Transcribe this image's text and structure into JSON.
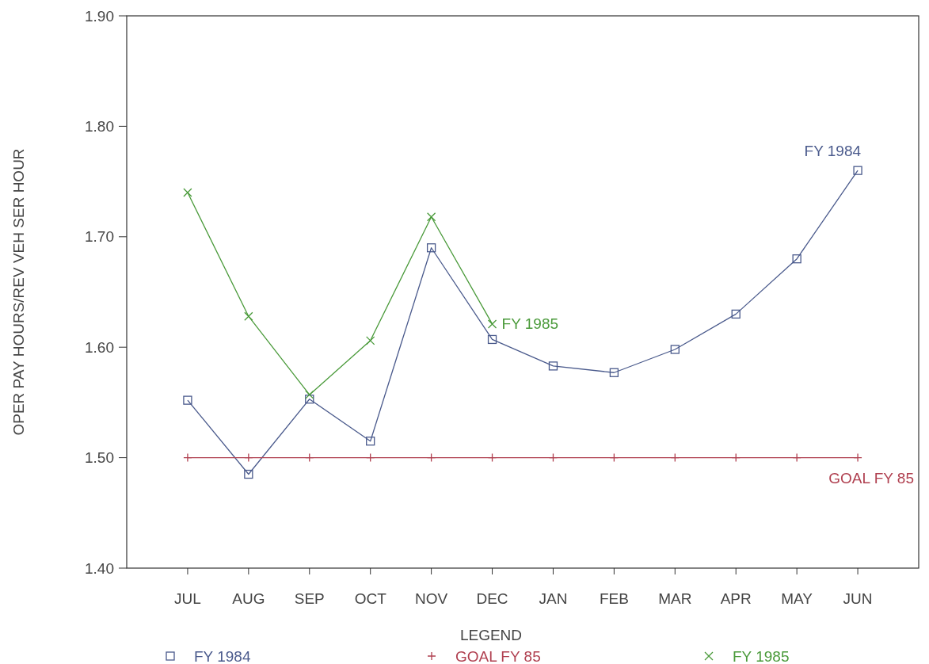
{
  "chart_data": {
    "type": "line",
    "ylabel": "OPER PAY HOURS/REV VEH SER HOUR",
    "categories": [
      "JUL",
      "AUG",
      "SEP",
      "OCT",
      "NOV",
      "DEC",
      "JAN",
      "FEB",
      "MAR",
      "APR",
      "MAY",
      "JUN"
    ],
    "series": [
      {
        "name": "FY 1984",
        "color": "#4a5a8c",
        "marker": "square",
        "values": [
          1.552,
          1.485,
          1.553,
          1.515,
          1.69,
          1.607,
          1.583,
          1.577,
          1.598,
          1.63,
          1.68,
          1.76
        ]
      },
      {
        "name": "GOAL FY 85",
        "color": "#b04050",
        "marker": "plus",
        "values": [
          1.5,
          1.5,
          1.5,
          1.5,
          1.5,
          1.5,
          1.5,
          1.5,
          1.5,
          1.5,
          1.5,
          1.5
        ]
      },
      {
        "name": "FY 1985",
        "color": "#4a9a3a",
        "marker": "cross",
        "values": [
          1.74,
          1.628,
          1.557,
          1.606,
          1.718,
          1.621,
          null,
          null,
          null,
          null,
          null,
          null
        ]
      }
    ],
    "ylim": [
      1.4,
      1.9
    ],
    "yticks": [
      {
        "value": 1.4,
        "label": "1.40"
      },
      {
        "value": 1.5,
        "label": "1.50"
      },
      {
        "value": 1.6,
        "label": "1.60"
      },
      {
        "value": 1.7,
        "label": "1.70"
      },
      {
        "value": 1.8,
        "label": "1.80"
      },
      {
        "value": 1.9,
        "label": "1.90"
      }
    ],
    "legend": "bottom",
    "legend_title": "LEGEND"
  }
}
